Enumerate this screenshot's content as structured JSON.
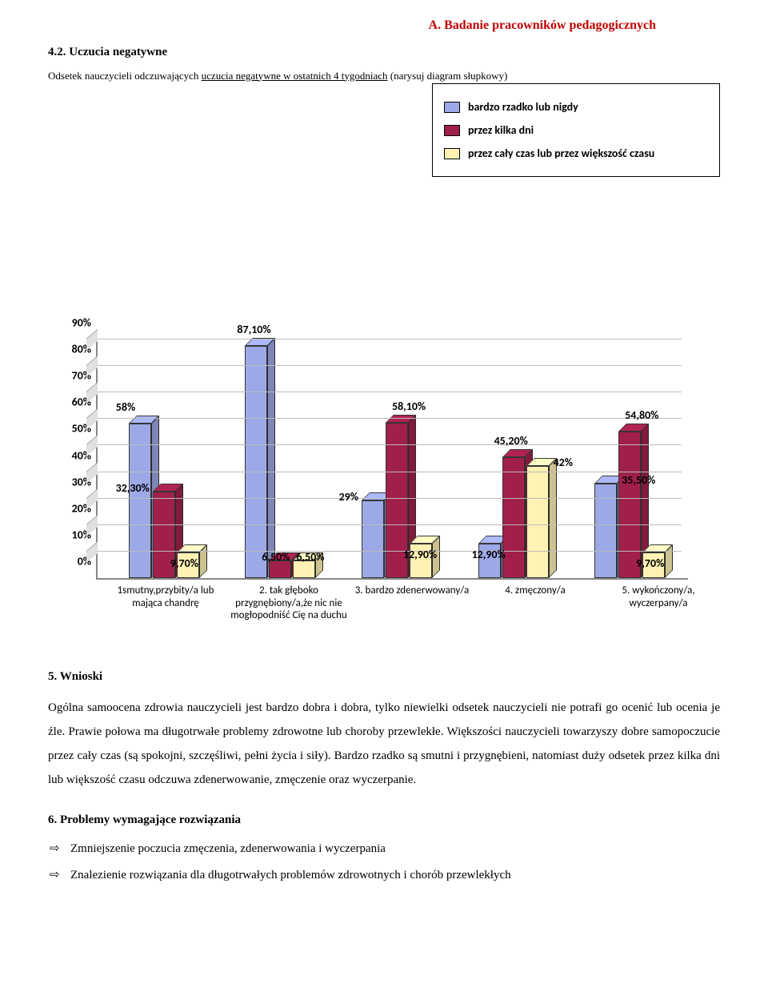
{
  "header": "A. Badanie pracowników pedagogicznych",
  "section42": {
    "num": "4.2.",
    "title": "Uczucia negatywne",
    "sub_pre": "Odsetek nauczycieli odczuwających ",
    "sub_underline": "uczucia negatywne w ostatnich 4 tygodniach",
    "sub_post": " (narysuj diagram słupkowy)"
  },
  "chart": {
    "colors": {
      "s1": "#9da8e6",
      "s2": "#a1204a",
      "s3": "#fff2b3"
    },
    "legend": [
      "bardzo rzadko lub nigdy",
      "przez kilka dni",
      "przez cały czas lub przez większość czasu"
    ],
    "ymax": 90,
    "yticks": [
      "0%",
      "10%",
      "20%",
      "30%",
      "40%",
      "50%",
      "60%",
      "70%",
      "80%",
      "90%"
    ],
    "categories": [
      "1smutny,przybity/a lub mająca chandrę",
      "2. tak głęboko przygnębiony/a,że nic nie mogłopodniść Cię na duchu",
      "3. bardzo zdenerwowany/a",
      "4. zmęczony/a",
      "5. wykończony/a, wyczerpany/a"
    ],
    "series": [
      {
        "v": [
          58,
          32.3,
          9.7
        ],
        "lbl": [
          "58%",
          "32,30%",
          "9,70%"
        ],
        "lpos": [
          "above-left",
          "left",
          "below"
        ]
      },
      {
        "v": [
          87.1,
          6.5,
          6.5
        ],
        "lbl": [
          "87,10%",
          "6,50%",
          "6,50%"
        ],
        "lpos": [
          "above",
          "right",
          "left"
        ]
      },
      {
        "v": [
          29,
          58.1,
          12.9
        ],
        "lbl": [
          "29%",
          "58,10%",
          "12,90%"
        ],
        "lpos": [
          "left",
          "above-right",
          "below"
        ]
      },
      {
        "v": [
          12.9,
          45.2,
          42
        ],
        "lbl": [
          "12,90%",
          "45,20%",
          "42%"
        ],
        "lpos": [
          "below",
          "above",
          "right"
        ]
      },
      {
        "v": [
          35.5,
          54.8,
          9.7
        ],
        "lbl": [
          "35,50%",
          "54,80%",
          "9,70%"
        ],
        "lpos": [
          "right",
          "above-right",
          "below"
        ]
      }
    ]
  },
  "wnioski": {
    "title": "5. Wnioski",
    "text": "Ogólna samoocena zdrowia nauczycieli jest bardzo dobra i dobra, tylko niewielki odsetek nauczycieli nie potrafi go ocenić lub ocenia je źle. Prawie połowa ma długotrwałe problemy zdrowotne lub choroby przewlekłe. Większości nauczycieli towarzyszy dobre samopoczucie przez cały czas (są spokojni, szczęśliwi, pełni życia i siły). Bardzo rzadko są smutni i przygnębieni, natomiast duży odsetek przez kilka dni lub większość czasu odczuwa zdenerwowanie, zmęczenie oraz wyczerpanie."
  },
  "problemy": {
    "title": "6. Problemy wymagające rozwiązania",
    "items": [
      "Zmniejszenie poczucia zmęczenia, zdenerwowania i wyczerpania",
      "Znalezienie rozwiązania dla długotrwałych problemów zdrowotnych i chorób przewlekłych"
    ]
  }
}
